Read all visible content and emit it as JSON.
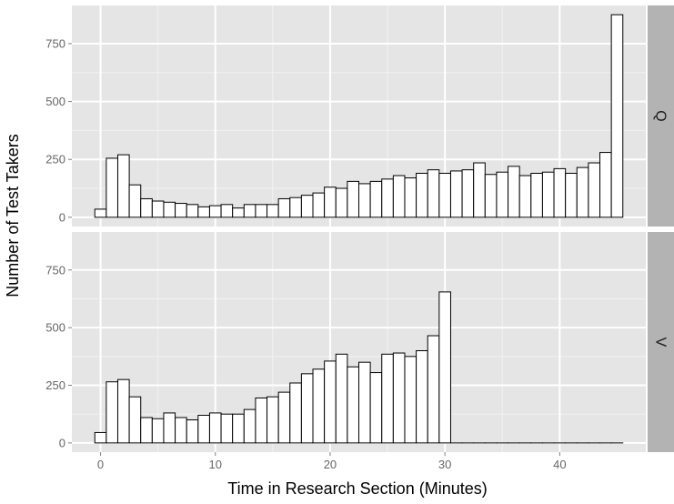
{
  "chart_data": {
    "type": "bar",
    "subtype": "faceted-histogram",
    "xlabel": "Time in Research Section (Minutes)",
    "ylabel": "Number of Test Takers",
    "x_ticks": [
      0,
      10,
      20,
      30,
      40
    ],
    "y_ticks": [
      0,
      250,
      500,
      750
    ],
    "xlim": [
      -2.5,
      47.5
    ],
    "ylim": [
      -40,
      915
    ],
    "bin_width": 1,
    "bin_centers": [
      0,
      1,
      2,
      3,
      4,
      5,
      6,
      7,
      8,
      9,
      10,
      11,
      12,
      13,
      14,
      15,
      16,
      17,
      18,
      19,
      20,
      21,
      22,
      23,
      24,
      25,
      26,
      27,
      28,
      29,
      30,
      31,
      32,
      33,
      34,
      35,
      36,
      37,
      38,
      39,
      40,
      41,
      42,
      43,
      44,
      45
    ],
    "grid": true,
    "facets": [
      {
        "label": "Q",
        "values": [
          35,
          255,
          270,
          140,
          80,
          70,
          65,
          60,
          55,
          45,
          50,
          55,
          40,
          55,
          55,
          55,
          80,
          85,
          95,
          105,
          130,
          125,
          155,
          145,
          155,
          165,
          180,
          170,
          190,
          205,
          190,
          200,
          205,
          235,
          185,
          195,
          220,
          180,
          190,
          195,
          210,
          190,
          215,
          235,
          280,
          875
        ]
      },
      {
        "label": "V",
        "values": [
          45,
          265,
          275,
          200,
          110,
          105,
          130,
          110,
          100,
          120,
          130,
          125,
          125,
          145,
          195,
          200,
          220,
          260,
          300,
          320,
          355,
          385,
          330,
          350,
          305,
          385,
          390,
          375,
          400,
          465,
          655,
          0,
          0,
          0,
          0,
          0,
          0,
          0,
          0,
          0,
          0,
          0,
          0,
          0,
          0,
          0
        ]
      }
    ],
    "colors": {
      "panel_background": "#e5e5e5",
      "grid_major": "#ffffff",
      "grid_minor": "#f2f2f2",
      "bar_fill": "#ffffff",
      "bar_stroke": "#000000",
      "strip_background": "#b3b3b3",
      "tick_text": "#666666",
      "title_text": "#000000"
    }
  }
}
